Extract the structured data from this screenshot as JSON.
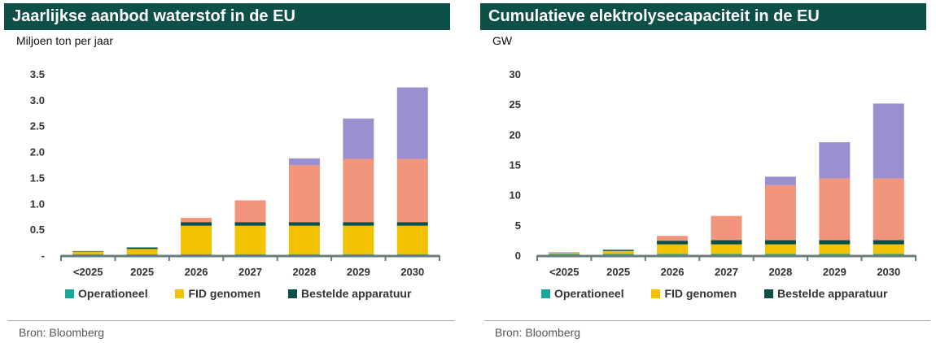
{
  "colors": {
    "title_bg": "#0e4f47",
    "operationeel": "#1aa89a",
    "fid_genomen": "#f2c200",
    "bestelde_apparatuur": "#0b4f46",
    "salmon": "#f2957d",
    "purple": "#9a8fcf",
    "axis": "#6b7d7a"
  },
  "legend": {
    "operationeel": "Operationeel",
    "fid": "FID genomen",
    "bestelde": "Bestelde apparatuur"
  },
  "left": {
    "title": "Jaarlijkse aanbod waterstof in de EU",
    "unit": "Miljoen ton per jaar",
    "source": "Bron: Bloomberg"
  },
  "right": {
    "title": "Cumulatieve elektrolysecapaciteit in de EU",
    "unit": "GW",
    "source": "Bron: Bloomberg"
  },
  "chart_data": [
    {
      "type": "bar",
      "stacked": true,
      "title": "Jaarlijkse aanbod waterstof in de EU",
      "ylabel": "Miljoen ton per jaar",
      "ylim": [
        0,
        3.5
      ],
      "yticks": [
        0,
        0.5,
        1.0,
        1.5,
        2.0,
        2.5,
        3.0,
        3.5
      ],
      "ytick_labels": [
        "-",
        "0.5",
        "1.0",
        "1.5",
        "2.0",
        "2.5",
        "3.0",
        "3.5"
      ],
      "categories": [
        "<2025",
        "2025",
        "2026",
        "2027",
        "2028",
        "2029",
        "2030"
      ],
      "series": [
        {
          "name": "Operationeel",
          "color": "#1aa89a",
          "values": [
            0.02,
            0.02,
            0.02,
            0.02,
            0.02,
            0.02,
            0.02
          ]
        },
        {
          "name": "FID genomen",
          "color": "#f2c200",
          "values": [
            0.05,
            0.1,
            0.55,
            0.55,
            0.55,
            0.55,
            0.55
          ]
        },
        {
          "color": "#0b4f46",
          "values": [
            0.01,
            0.03,
            0.07,
            0.07,
            0.07,
            0.07,
            0.07
          ]
        },
        {
          "color": "#f2957d",
          "values": [
            0.0,
            0.0,
            0.08,
            0.42,
            1.1,
            1.22,
            1.22
          ]
        },
        {
          "color": "#9a8fcf",
          "values": [
            0.0,
            0.0,
            0.0,
            0.0,
            0.13,
            0.78,
            1.38
          ]
        }
      ]
    },
    {
      "type": "bar",
      "stacked": true,
      "title": "Cumulatieve elektrolysecapaciteit in de EU",
      "ylabel": "GW",
      "ylim": [
        0,
        30
      ],
      "yticks": [
        0,
        5,
        10,
        15,
        20,
        25,
        30
      ],
      "ytick_labels": [
        "0",
        "5",
        "10",
        "15",
        "20",
        "25",
        "30"
      ],
      "categories": [
        "<2025",
        "2025",
        "2026",
        "2027",
        "2028",
        "2029",
        "2030"
      ],
      "series": [
        {
          "name": "Operationeel",
          "color": "#1aa89a",
          "values": [
            0.2,
            0.2,
            0.2,
            0.2,
            0.2,
            0.2,
            0.2
          ]
        },
        {
          "name": "FID genomen",
          "color": "#f2c200",
          "values": [
            0.2,
            0.5,
            1.6,
            1.6,
            1.6,
            1.6,
            1.6
          ]
        },
        {
          "color": "#0b4f46",
          "values": [
            0.05,
            0.2,
            0.6,
            0.7,
            0.7,
            0.7,
            0.7
          ]
        },
        {
          "color": "#f2957d",
          "values": [
            0.0,
            0.0,
            0.8,
            4.0,
            9.1,
            10.2,
            10.2
          ]
        },
        {
          "color": "#9a8fcf",
          "values": [
            0.0,
            0.0,
            0.0,
            0.0,
            1.4,
            6.0,
            12.4
          ]
        }
      ]
    }
  ]
}
